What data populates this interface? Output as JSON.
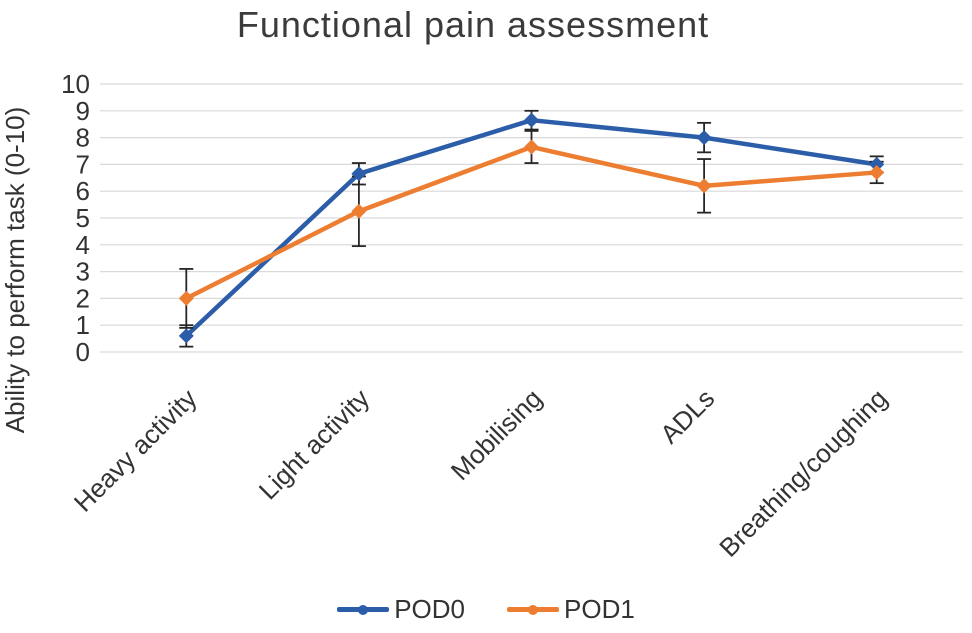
{
  "chart_data": {
    "type": "line",
    "title": "Functional pain assessment",
    "ylabel": "Ability to perform task (0-10)",
    "xlabel": "",
    "categories": [
      "Heavy activity",
      "Light activity",
      "Mobilising",
      "ADLs",
      "Breathing/coughing"
    ],
    "series": [
      {
        "name": "POD0",
        "color": "#2b5da9",
        "values": [
          0.6,
          6.65,
          8.65,
          8.0,
          7.0
        ],
        "errors": [
          0.4,
          0.4,
          0.35,
          0.55,
          0.3
        ]
      },
      {
        "name": "POD1",
        "color": "#ed7d31",
        "values": [
          2.0,
          5.25,
          7.65,
          6.2,
          6.7
        ],
        "errors": [
          1.1,
          1.3,
          0.6,
          1.0,
          0.4
        ]
      }
    ],
    "ylim": [
      0,
      10
    ],
    "yticks": [
      0,
      1,
      2,
      3,
      4,
      5,
      6,
      7,
      8,
      9,
      10
    ],
    "grid": "horizontal",
    "gridline_color": "#d9d9d9",
    "error_bar_color": "#262626",
    "axis_text_color": "#333333",
    "legend_position": "bottom",
    "marker": "diamond"
  }
}
